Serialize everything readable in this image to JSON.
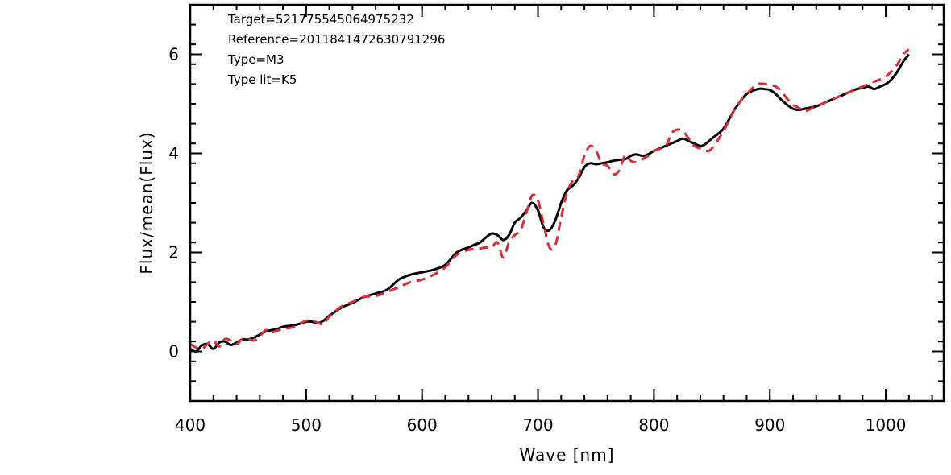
{
  "chart_data": {
    "type": "line",
    "xlabel": "Wave [nm]",
    "ylabel": "Flux/mean(Flux)",
    "xlim": [
      400,
      1050
    ],
    "ylim": [
      -1,
      7
    ],
    "x_ticks": [
      400,
      500,
      600,
      700,
      800,
      900,
      1000
    ],
    "y_ticks": [
      0,
      2,
      4,
      6
    ],
    "x_minor_step": 20,
    "y_minor_step": 0.4,
    "grid": false,
    "annotations": [
      "Target=521775545064975232",
      "Reference=2011841472630791296",
      "Type=M3",
      "Type lit=K5"
    ],
    "series": [
      {
        "style": "solid",
        "color": "#000000",
        "x": [
          400,
          405,
          410,
          415,
          420,
          425,
          430,
          435,
          440,
          445,
          450,
          455,
          460,
          465,
          470,
          475,
          480,
          490,
          500,
          505,
          510,
          515,
          520,
          530,
          540,
          550,
          560,
          570,
          580,
          590,
          600,
          610,
          620,
          630,
          640,
          645,
          650,
          655,
          660,
          665,
          670,
          675,
          680,
          685,
          690,
          695,
          700,
          705,
          710,
          715,
          720,
          725,
          730,
          735,
          740,
          745,
          750,
          755,
          760,
          765,
          770,
          775,
          780,
          785,
          790,
          795,
          800,
          810,
          820,
          825,
          830,
          840,
          845,
          850,
          860,
          870,
          880,
          890,
          895,
          900,
          905,
          910,
          915,
          920,
          925,
          930,
          940,
          950,
          960,
          965,
          970,
          975,
          980,
          985,
          990,
          995,
          1000,
          1005,
          1010,
          1015,
          1020
        ],
        "y": [
          0.05,
          0.0,
          0.12,
          0.15,
          0.05,
          0.18,
          0.2,
          0.13,
          0.18,
          0.24,
          0.24,
          0.28,
          0.34,
          0.4,
          0.43,
          0.45,
          0.5,
          0.53,
          0.6,
          0.6,
          0.57,
          0.62,
          0.72,
          0.88,
          0.98,
          1.1,
          1.17,
          1.25,
          1.45,
          1.55,
          1.6,
          1.65,
          1.75,
          2.0,
          2.1,
          2.15,
          2.2,
          2.3,
          2.38,
          2.35,
          2.25,
          2.35,
          2.6,
          2.7,
          2.85,
          3.0,
          2.85,
          2.5,
          2.45,
          2.65,
          3.0,
          3.25,
          3.35,
          3.5,
          3.72,
          3.8,
          3.78,
          3.8,
          3.82,
          3.85,
          3.87,
          3.88,
          3.95,
          3.98,
          3.95,
          3.98,
          4.05,
          4.15,
          4.25,
          4.3,
          4.25,
          4.15,
          4.2,
          4.3,
          4.5,
          4.9,
          5.2,
          5.3,
          5.3,
          5.28,
          5.2,
          5.08,
          4.98,
          4.9,
          4.88,
          4.9,
          4.95,
          5.05,
          5.15,
          5.2,
          5.25,
          5.3,
          5.32,
          5.35,
          5.3,
          5.35,
          5.4,
          5.5,
          5.65,
          5.85,
          6.0
        ]
      },
      {
        "style": "dashed",
        "color": "#d62f3a",
        "x": [
          400,
          405,
          410,
          415,
          420,
          425,
          430,
          435,
          440,
          445,
          450,
          455,
          460,
          465,
          470,
          475,
          480,
          490,
          500,
          505,
          510,
          515,
          520,
          530,
          540,
          550,
          560,
          570,
          580,
          590,
          600,
          610,
          620,
          630,
          640,
          650,
          655,
          660,
          665,
          670,
          675,
          680,
          685,
          690,
          695,
          700,
          705,
          710,
          715,
          720,
          725,
          730,
          735,
          740,
          745,
          750,
          755,
          760,
          765,
          770,
          775,
          780,
          785,
          790,
          795,
          800,
          810,
          815,
          820,
          825,
          830,
          835,
          840,
          845,
          850,
          860,
          870,
          880,
          890,
          900,
          905,
          910,
          915,
          920,
          925,
          930,
          940,
          950,
          960,
          970,
          980,
          990,
          1000,
          1010,
          1015,
          1020
        ],
        "y": [
          0.15,
          0.08,
          0.05,
          0.15,
          0.22,
          0.1,
          0.25,
          0.22,
          0.15,
          0.25,
          0.25,
          0.22,
          0.3,
          0.43,
          0.38,
          0.42,
          0.45,
          0.5,
          0.62,
          0.62,
          0.58,
          0.55,
          0.7,
          0.9,
          1.0,
          1.1,
          1.12,
          1.2,
          1.3,
          1.4,
          1.45,
          1.55,
          1.7,
          1.95,
          2.05,
          2.08,
          2.1,
          2.1,
          2.2,
          1.9,
          2.2,
          2.35,
          2.45,
          2.8,
          3.15,
          3.05,
          2.55,
          2.1,
          2.15,
          2.7,
          3.2,
          3.45,
          3.55,
          3.95,
          4.15,
          4.05,
          3.8,
          3.75,
          3.58,
          3.65,
          3.95,
          3.85,
          3.82,
          3.88,
          3.95,
          4.05,
          4.15,
          4.4,
          4.48,
          4.45,
          4.3,
          4.15,
          4.1,
          4.05,
          4.1,
          4.45,
          4.9,
          5.2,
          5.4,
          5.38,
          5.35,
          5.25,
          5.1,
          4.98,
          4.92,
          4.85,
          4.95,
          5.05,
          5.15,
          5.25,
          5.35,
          5.45,
          5.55,
          5.8,
          6.0,
          6.1
        ]
      }
    ]
  }
}
